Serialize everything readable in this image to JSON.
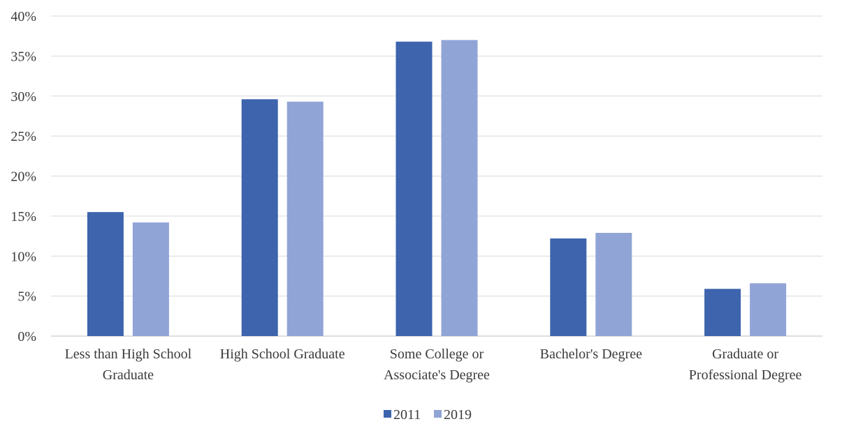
{
  "chart_data": {
    "type": "bar",
    "title": "",
    "xlabel": "",
    "ylabel": "",
    "ylim": [
      0,
      40
    ],
    "yticks": [
      "0%",
      "5%",
      "10%",
      "15%",
      "20%",
      "25%",
      "30%",
      "35%",
      "40%"
    ],
    "grid": true,
    "legend_position": "bottom",
    "categories": [
      [
        "Less than High School",
        "Graduate"
      ],
      [
        "High School Graduate"
      ],
      [
        "Some College or",
        "Associate's Degree"
      ],
      [
        "Bachelor's Degree"
      ],
      [
        "Graduate or",
        "Professional Degree"
      ]
    ],
    "series": [
      {
        "name": "2011",
        "color": "#3d64ad",
        "values": [
          15.5,
          29.6,
          36.8,
          12.2,
          5.9
        ]
      },
      {
        "name": "2019",
        "color": "#91a4d6",
        "values": [
          14.2,
          29.3,
          37.0,
          12.9,
          6.6
        ]
      }
    ]
  }
}
